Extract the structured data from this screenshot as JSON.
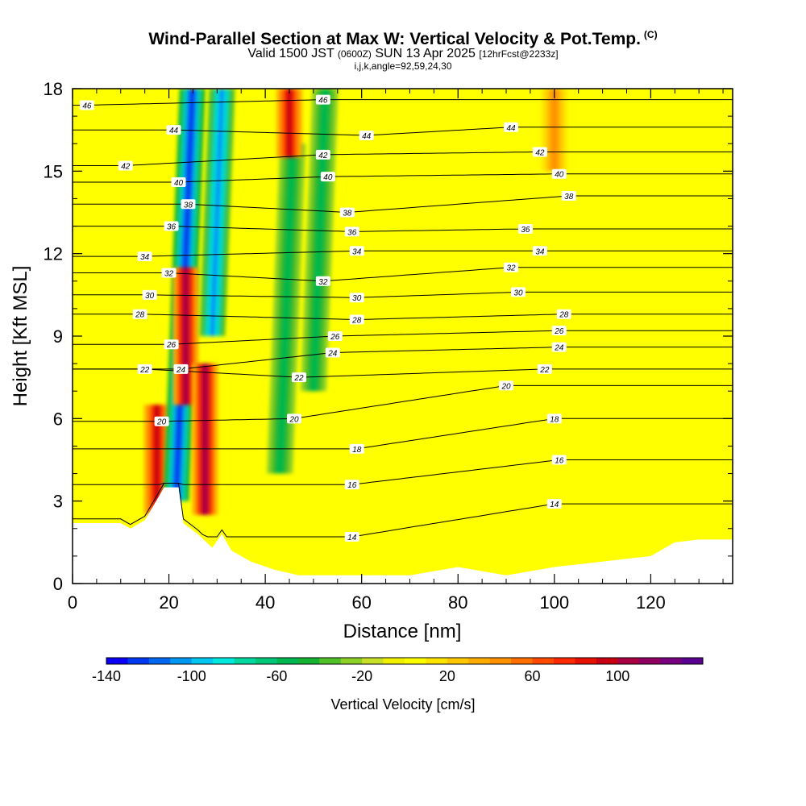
{
  "header": {
    "title": "Wind-Parallel Section at Max W: Vertical Velocity & Pot.Temp.",
    "copyright": "(C)",
    "valid_prefix": "Valid 1500 JST",
    "valid_utc": "(0600Z)",
    "valid_date": "SUN 13 Apr 2025",
    "forecast": "[12hrFcst@2233z]",
    "indices": "i,j,k,angle=92,59,24,30"
  },
  "chart_data": {
    "type": "heatmap",
    "xlabel": "Distance [nm]",
    "ylabel": "Height [Kft MSL]",
    "xlim": [
      0,
      137
    ],
    "ylim": [
      0,
      18
    ],
    "xticks": [
      0,
      20,
      40,
      60,
      80,
      100,
      120
    ],
    "yticks": [
      0,
      3,
      6,
      9,
      12,
      15,
      18
    ],
    "colorbar": {
      "label": "Vertical Velocity [cm/s]",
      "range": [
        -140,
        140
      ],
      "step": 10,
      "tick_values": [
        -140,
        -100,
        -60,
        -20,
        20,
        60,
        100
      ],
      "tick_labels": [
        "-140",
        "-100",
        "-60",
        "-20",
        "20",
        "60",
        "100"
      ],
      "colors": [
        "#0a00f5",
        "#0037f0",
        "#0068f0",
        "#0098f0",
        "#00c8f0",
        "#00e8e0",
        "#00d8a0",
        "#00c878",
        "#00b850",
        "#14b432",
        "#50c028",
        "#8cd028",
        "#c8e028",
        "#f0f000",
        "#ffff00",
        "#ffe400",
        "#ffc800",
        "#ffac00",
        "#ff9000",
        "#ff6e00",
        "#ff4a00",
        "#ff2800",
        "#e81000",
        "#c80010",
        "#a80040",
        "#900060",
        "#780080",
        "#5a0090"
      ]
    },
    "velocity_features": [
      {
        "x": 17.5,
        "y_min": 2.5,
        "y_max": 6.5,
        "w": 95
      },
      {
        "x": 21.5,
        "y_min": 3.0,
        "y_max": 18,
        "w": -130
      },
      {
        "x": 23.5,
        "y_min": 6.5,
        "y_max": 11.5,
        "w": 100
      },
      {
        "x": 27.5,
        "y_min": 2.5,
        "y_max": 8.0,
        "w": 105
      },
      {
        "x": 29,
        "y_min": 9.0,
        "y_max": 18,
        "w": -110
      },
      {
        "x": 43,
        "y_min": 4.0,
        "y_max": 16,
        "w": -60
      },
      {
        "x": 45,
        "y_min": 15.5,
        "y_max": 18,
        "w": 90
      },
      {
        "x": 50,
        "y_min": 7.0,
        "y_max": 18,
        "w": -60
      },
      {
        "x": 100,
        "y_min": 15,
        "y_max": 18,
        "w": 40
      }
    ],
    "terrain_heights_kft": [
      [
        0,
        2.2
      ],
      [
        10,
        2.2
      ],
      [
        12,
        2.0
      ],
      [
        15,
        2.3
      ],
      [
        17,
        2.9
      ],
      [
        19,
        3.5
      ],
      [
        22,
        3.5
      ],
      [
        23,
        2.2
      ],
      [
        26,
        1.8
      ],
      [
        29,
        1.3
      ],
      [
        31,
        1.8
      ],
      [
        33,
        1.2
      ],
      [
        37,
        0.8
      ],
      [
        42,
        0.5
      ],
      [
        47,
        0.3
      ],
      [
        55,
        0.3
      ],
      [
        58,
        0.3
      ],
      [
        63,
        0.3
      ],
      [
        70,
        0.3
      ],
      [
        80,
        0.6
      ],
      [
        90,
        0.3
      ],
      [
        100,
        0.6
      ],
      [
        115,
        0.9
      ],
      [
        120,
        1.0
      ],
      [
        125,
        1.5
      ],
      [
        130,
        1.6
      ],
      [
        137,
        1.6
      ]
    ],
    "isentropes": {
      "series": [
        {
          "name": "14",
          "labels": [
            {
              "x": 58,
              "y": 1.7
            },
            {
              "x": 100,
              "y": 2.9
            }
          ]
        },
        {
          "name": "16",
          "labels": [
            {
              "x": 58,
              "y": 3.6
            },
            {
              "x": 101,
              "y": 4.5
            }
          ]
        },
        {
          "name": "18",
          "labels": [
            {
              "x": 59,
              "y": 4.9
            },
            {
              "x": 100,
              "y": 6.0
            }
          ]
        },
        {
          "name": "20",
          "labels": [
            {
              "x": 18.5,
              "y": 5.9
            },
            {
              "x": 46,
              "y": 6.0
            },
            {
              "x": 90,
              "y": 7.2
            }
          ]
        },
        {
          "name": "22",
          "labels": [
            {
              "x": 15,
              "y": 7.8
            },
            {
              "x": 47,
              "y": 7.5
            },
            {
              "x": 98,
              "y": 7.8
            }
          ]
        },
        {
          "name": "24",
          "labels": [
            {
              "x": 22.5,
              "y": 7.8
            },
            {
              "x": 54,
              "y": 8.4
            },
            {
              "x": 101,
              "y": 8.6
            }
          ]
        },
        {
          "name": "26",
          "labels": [
            {
              "x": 20.5,
              "y": 8.7
            },
            {
              "x": 54.5,
              "y": 9.0
            },
            {
              "x": 101,
              "y": 9.2
            }
          ]
        },
        {
          "name": "28",
          "labels": [
            {
              "x": 14,
              "y": 9.8
            },
            {
              "x": 59,
              "y": 9.6
            },
            {
              "x": 102,
              "y": 9.8
            }
          ]
        },
        {
          "name": "30",
          "labels": [
            {
              "x": 16,
              "y": 10.5
            },
            {
              "x": 59,
              "y": 10.4
            },
            {
              "x": 92.5,
              "y": 10.6
            }
          ]
        },
        {
          "name": "32",
          "labels": [
            {
              "x": 20,
              "y": 11.3
            },
            {
              "x": 52,
              "y": 11.0
            },
            {
              "x": 91,
              "y": 11.5
            }
          ]
        },
        {
          "name": "34",
          "labels": [
            {
              "x": 15,
              "y": 11.9
            },
            {
              "x": 59,
              "y": 12.1
            },
            {
              "x": 97,
              "y": 12.1
            }
          ]
        },
        {
          "name": "36",
          "labels": [
            {
              "x": 20.5,
              "y": 13.0
            },
            {
              "x": 58,
              "y": 12.8
            },
            {
              "x": 94,
              "y": 12.9
            }
          ]
        },
        {
          "name": "38",
          "labels": [
            {
              "x": 24,
              "y": 13.8
            },
            {
              "x": 57,
              "y": 13.5
            },
            {
              "x": 103,
              "y": 14.1
            }
          ]
        },
        {
          "name": "40",
          "labels": [
            {
              "x": 22,
              "y": 14.6
            },
            {
              "x": 53,
              "y": 14.8
            },
            {
              "x": 101,
              "y": 14.9
            }
          ]
        },
        {
          "name": "42",
          "labels": [
            {
              "x": 11,
              "y": 15.2
            },
            {
              "x": 52,
              "y": 15.6
            },
            {
              "x": 97,
              "y": 15.7
            }
          ]
        },
        {
          "name": "44",
          "labels": [
            {
              "x": 21,
              "y": 16.5
            },
            {
              "x": 61,
              "y": 16.3
            },
            {
              "x": 91,
              "y": 16.6
            }
          ]
        },
        {
          "name": "46",
          "labels": [
            {
              "x": 3,
              "y": 17.4
            },
            {
              "x": 52,
              "y": 17.6
            }
          ]
        }
      ]
    }
  }
}
